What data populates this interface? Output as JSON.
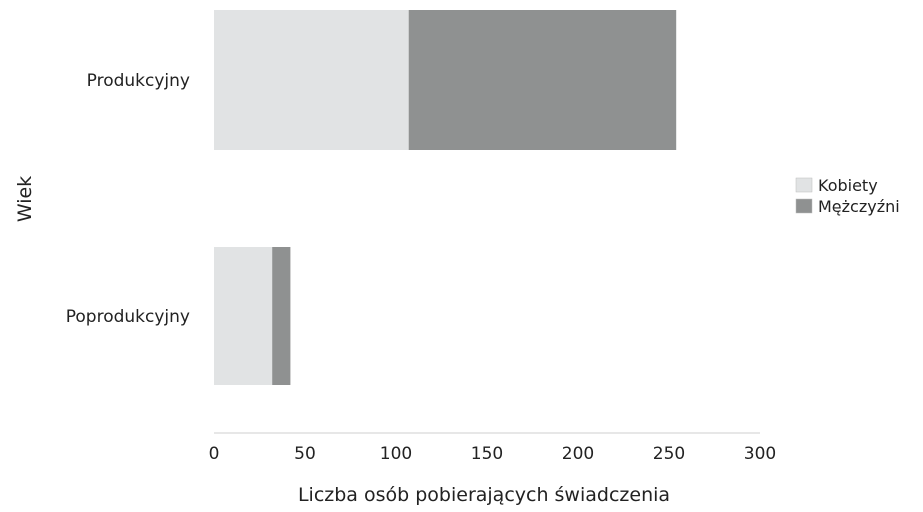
{
  "chart_data": {
    "type": "bar",
    "orientation": "horizontal",
    "stacked": true,
    "categories": [
      "Produkcyjny",
      "Poprodukcyjny"
    ],
    "series": [
      {
        "name": "Kobiety",
        "values": [
          107,
          32
        ],
        "color": "#e1e3e4"
      },
      {
        "name": "Mężczyźni",
        "values": [
          147,
          10
        ],
        "color": "#8f9191"
      }
    ],
    "xlabel": "Liczba osób pobierających świadczenia",
    "ylabel": "Wiek",
    "xlim": [
      0,
      300
    ],
    "xticks": [
      0,
      50,
      100,
      150,
      200,
      250,
      300
    ],
    "grid": false,
    "legend": "right"
  }
}
